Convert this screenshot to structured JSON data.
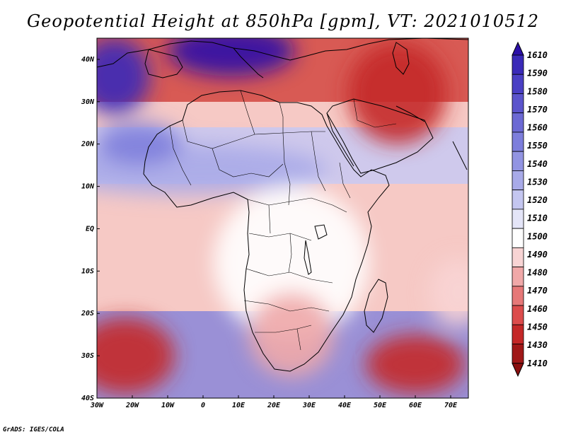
{
  "title": "Geopotential Height at 850hPa [gpm], VT: 2021010512",
  "footer": "GrADS: IGES/COLA",
  "map": {
    "lon_range": [
      -30,
      75
    ],
    "lat_range": [
      -40,
      45
    ],
    "lat_ticks": [
      {
        "value": 40,
        "label": "40N"
      },
      {
        "value": 30,
        "label": "30N"
      },
      {
        "value": 20,
        "label": "20N"
      },
      {
        "value": 10,
        "label": "10N"
      },
      {
        "value": 0,
        "label": "EQ"
      },
      {
        "value": -10,
        "label": "10S"
      },
      {
        "value": -20,
        "label": "20S"
      },
      {
        "value": -30,
        "label": "30S"
      },
      {
        "value": -40,
        "label": "40S"
      }
    ],
    "lon_ticks": [
      {
        "value": -30,
        "label": "30W"
      },
      {
        "value": -20,
        "label": "20W"
      },
      {
        "value": -10,
        "label": "10W"
      },
      {
        "value": 0,
        "label": "0"
      },
      {
        "value": 10,
        "label": "10E"
      },
      {
        "value": 20,
        "label": "20E"
      },
      {
        "value": 30,
        "label": "30E"
      },
      {
        "value": 40,
        "label": "40E"
      },
      {
        "value": 50,
        "label": "50E"
      },
      {
        "value": 60,
        "label": "60E"
      },
      {
        "value": 70,
        "label": "70E"
      }
    ],
    "regions": [
      {
        "name": "north-atlantic-high",
        "value": 1590,
        "lon": -25,
        "lat": 36,
        "rx_deg": 10,
        "ry_deg": 9
      },
      {
        "name": "mediterranean-high",
        "value": 1600,
        "lon": 8,
        "lat": 42,
        "rx_deg": 18,
        "ry_deg": 6
      },
      {
        "name": "middle-east-low",
        "value": 1445,
        "lon": 55,
        "lat": 32,
        "rx_deg": 14,
        "ry_deg": 12
      },
      {
        "name": "sahel-band",
        "value": 1530,
        "lon": -5,
        "lat": 14,
        "rx_deg": 40,
        "ry_deg": 6
      },
      {
        "name": "west-africa-trough",
        "value": 1545,
        "lon": -18,
        "lat": 20,
        "rx_deg": 12,
        "ry_deg": 5
      },
      {
        "name": "central-africa",
        "value": 1495,
        "lon": 25,
        "lat": -8,
        "rx_deg": 22,
        "ry_deg": 18
      },
      {
        "name": "southern-africa",
        "value": 1480,
        "lon": 25,
        "lat": -25,
        "rx_deg": 12,
        "ry_deg": 10
      },
      {
        "name": "south-atlantic-low",
        "value": 1435,
        "lon": -22,
        "lat": -30,
        "rx_deg": 14,
        "ry_deg": 9
      },
      {
        "name": "indian-ocean-low",
        "value": 1440,
        "lon": 60,
        "lat": -32,
        "rx_deg": 14,
        "ry_deg": 7
      },
      {
        "name": "madagascar-high",
        "value": 1490,
        "lon": 72,
        "lat": -15,
        "rx_deg": 8,
        "ry_deg": 8
      }
    ]
  },
  "colorbar": {
    "levels": [
      "1610",
      "1590",
      "1580",
      "1570",
      "1560",
      "1550",
      "1540",
      "1530",
      "1520",
      "1510",
      "1500",
      "1490",
      "1480",
      "1470",
      "1460",
      "1450",
      "1430",
      "1410"
    ],
    "colors": [
      "#2b0fa8",
      "#3a2ab8",
      "#4a3fc4",
      "#5b54cc",
      "#6c69d4",
      "#7d7edc",
      "#9294e2",
      "#a8aae8",
      "#c4c6f0",
      "#e4e5f8",
      "#ffffff",
      "#f8d4d4",
      "#f0a8a8",
      "#e67878",
      "#dc4c4c",
      "#c42828",
      "#a01818",
      "#8a0f0f"
    ]
  }
}
